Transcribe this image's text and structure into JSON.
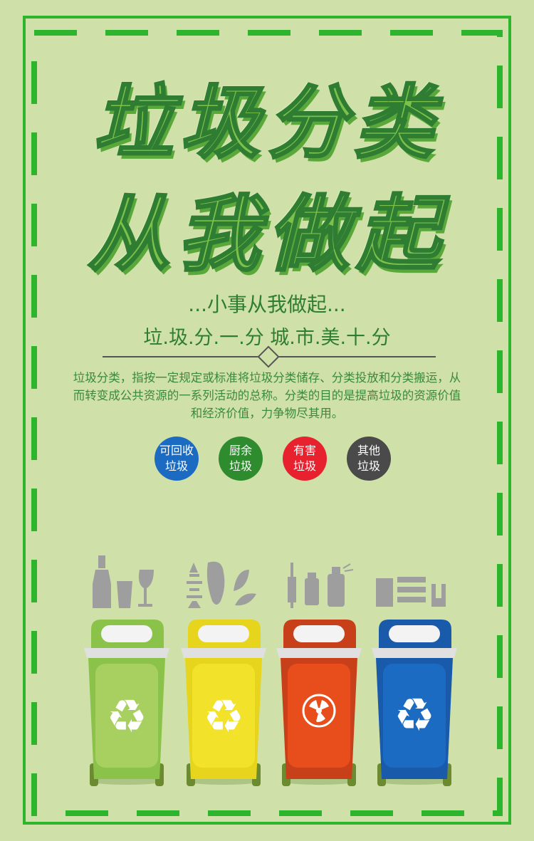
{
  "title": {
    "line1": "垃圾分类",
    "line2": "从我做起"
  },
  "subtitle": "...小事从我做起...",
  "slogan": "垃.圾.分.一.分   城.市.美.十.分",
  "description": "垃圾分类，指按一定规定或标准将垃圾分类储存、分类投放和分类搬运，从而转变成公共资源的一系列活动的总称。分类的目的是提高垃圾的资源价值和经济价值，力争物尽其用。",
  "categories": [
    {
      "line1": "可回收",
      "line2": "垃圾",
      "color": "#1c6bc2"
    },
    {
      "line1": "厨余",
      "line2": "垃圾",
      "color": "#2e8b2e"
    },
    {
      "line1": "有害",
      "line2": "垃圾",
      "color": "#e8212e"
    },
    {
      "line1": "其他",
      "line2": "垃圾",
      "color": "#4a4a4a"
    }
  ],
  "bins": [
    {
      "color": "#a8d060",
      "icon": "recycle-icon"
    },
    {
      "color": "#f2e22a",
      "icon": "recycle-icon"
    },
    {
      "color": "#e84e1c",
      "icon": "hazard-icon"
    },
    {
      "color": "#1c6bc2",
      "icon": "recycle-icon"
    }
  ],
  "colors": {
    "background": "#cfe0a8",
    "frame": "#2db52d",
    "text": "#2e7d32"
  }
}
